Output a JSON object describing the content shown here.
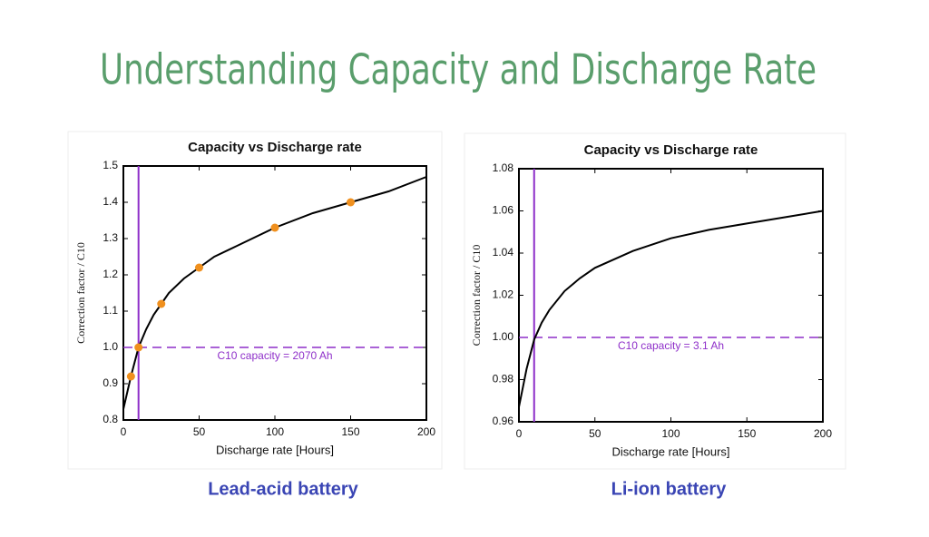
{
  "title": "Understanding Capacity and Discharge Rate",
  "chart_data": [
    {
      "type": "line",
      "title": "Capacity vs Discharge rate",
      "xlabel": "Discharge rate [Hours]",
      "ylabel": "Correction factor / C10",
      "annotation": "C10 capacity = 2070 Ah",
      "caption": "Lead-acid battery",
      "xlim": [
        0,
        200
      ],
      "ylim": [
        0.8,
        1.5
      ],
      "xticks": [
        0,
        50,
        100,
        150,
        200
      ],
      "yticks": [
        0.8,
        0.9,
        {
          "value": 1,
          "label": "1.0"
        },
        1.1,
        1.2,
        1.3,
        1.4,
        1.5
      ],
      "x": [
        0,
        5,
        10,
        15,
        20,
        25,
        30,
        40,
        50,
        60,
        75,
        100,
        125,
        150,
        175,
        200
      ],
      "values": [
        0.83,
        0.92,
        1.0,
        1.05,
        1.09,
        1.12,
        1.15,
        1.19,
        1.22,
        1.25,
        1.28,
        1.33,
        1.37,
        1.4,
        1.43,
        1.47
      ],
      "color": "#000000",
      "points": {
        "x": [
          5,
          10,
          25,
          50,
          100,
          150
        ],
        "values": [
          0.92,
          1.0,
          1.12,
          1.22,
          1.33,
          1.4
        ],
        "color": "#f0901e"
      },
      "reference_x": 10,
      "reference_y": 1,
      "reference_color": "#8e2fc9"
    },
    {
      "type": "line",
      "title": "Capacity vs Discharge rate",
      "xlabel": "Discharge rate [Hours]",
      "ylabel": "Correction factor / C10",
      "annotation": "C10 capacity = 3.1 Ah",
      "caption": "Li-ion battery",
      "xlim": [
        0,
        200
      ],
      "ylim": [
        0.96,
        1.08
      ],
      "xticks": [
        0,
        50,
        100,
        150,
        200
      ],
      "yticks": [
        0.96,
        0.98,
        {
          "value": 1,
          "label": "1.00"
        },
        1.02,
        1.04,
        1.06,
        1.08
      ],
      "x": [
        0,
        5,
        10,
        15,
        20,
        30,
        40,
        50,
        75,
        100,
        125,
        150,
        175,
        200
      ],
      "values": [
        0.967,
        0.985,
        0.999,
        1.007,
        1.013,
        1.022,
        1.028,
        1.033,
        1.041,
        1.047,
        1.051,
        1.054,
        1.057,
        1.06
      ],
      "color": "#000000",
      "reference_x": 10,
      "reference_y": 1,
      "reference_color": "#8e2fc9"
    }
  ]
}
